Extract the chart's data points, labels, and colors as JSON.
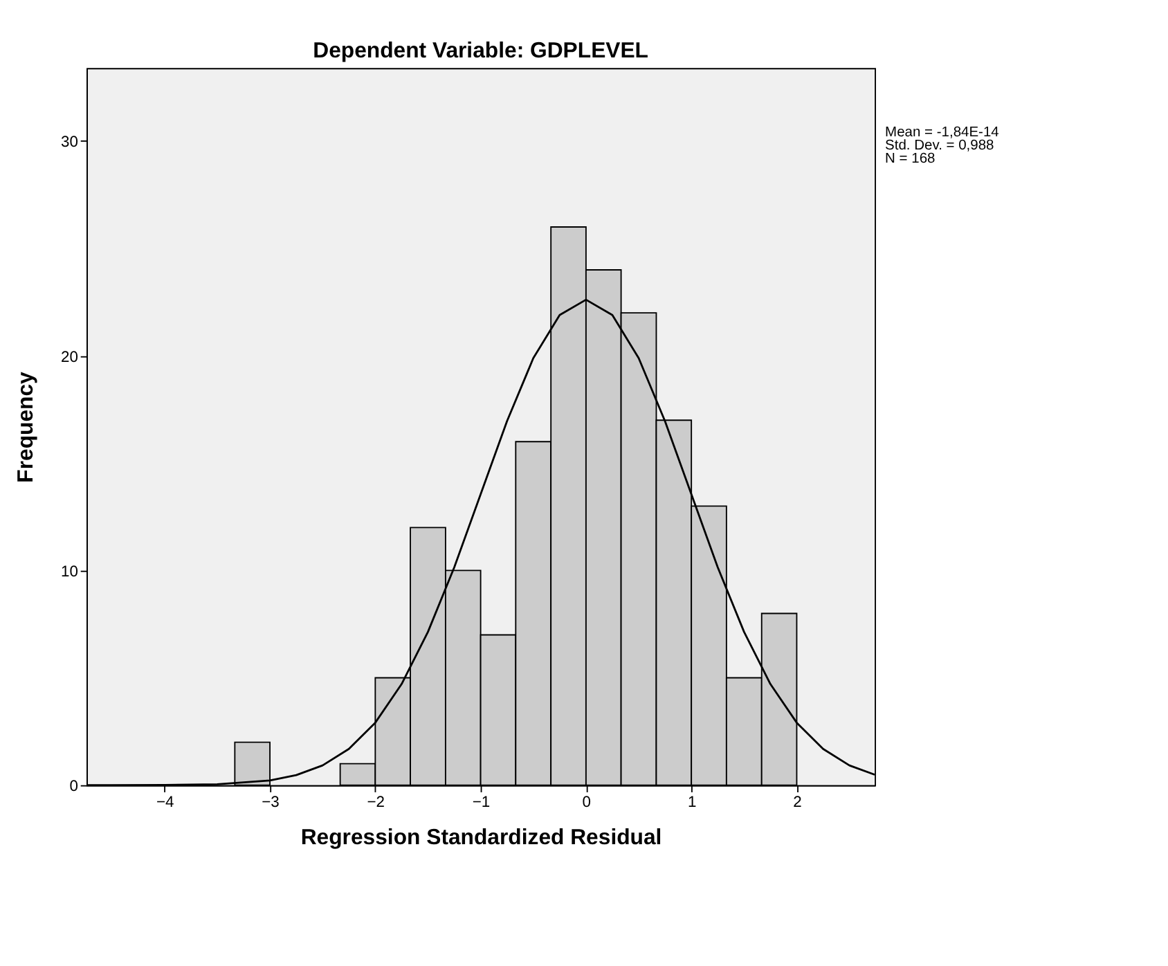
{
  "chart_data": {
    "type": "histogram",
    "title": "Dependent Variable: GDPLEVEL",
    "xlabel": "Regression Standardized Residual",
    "ylabel": "Frequency",
    "bins": [
      -3.333,
      -3,
      -2.667,
      -2.333,
      -2,
      -1.667,
      -1.333,
      -1,
      -0.667,
      -0.333,
      0,
      0.333,
      0.667,
      1,
      1.333,
      1.667,
      2
    ],
    "values": [
      2,
      0,
      0,
      1,
      5,
      12,
      10,
      7,
      16,
      26,
      24,
      22,
      17,
      13,
      5,
      8
    ],
    "color": "#cccccc",
    "series": [
      {
        "type": "line",
        "color": "#000000",
        "x": [
          -4.74,
          -4.5,
          -4,
          -3.5,
          -3,
          -2.75,
          -2.5,
          -2.25,
          -2,
          -1.75,
          -1.5,
          -1.25,
          -1,
          -0.75,
          -0.5,
          -0.25,
          0,
          0.25,
          0.5,
          0.75,
          1,
          1.25,
          1.5,
          1.75,
          2,
          2.25,
          2.5,
          2.74
        ],
        "values": [
          0,
          0,
          0.01,
          0.04,
          0.22,
          0.47,
          0.92,
          1.69,
          2.91,
          4.71,
          7.14,
          10.15,
          13.55,
          16.95,
          19.89,
          21.9,
          22.61,
          21.9,
          19.89,
          16.95,
          13.55,
          10.15,
          7.14,
          4.71,
          2.91,
          1.69,
          0.92,
          0.49
        ]
      }
    ],
    "xlim": [
      -4.74,
      2.74
    ],
    "xticks": [
      -4,
      -3,
      -2,
      -1,
      0,
      1,
      2
    ],
    "ylim": [
      0,
      33.4
    ],
    "yticks": [
      0,
      10,
      20,
      30
    ],
    "grid": false,
    "annotations": [
      "Mean = -1,84E-14",
      "Std. Dev. = 0,988",
      "N = 168"
    ]
  }
}
